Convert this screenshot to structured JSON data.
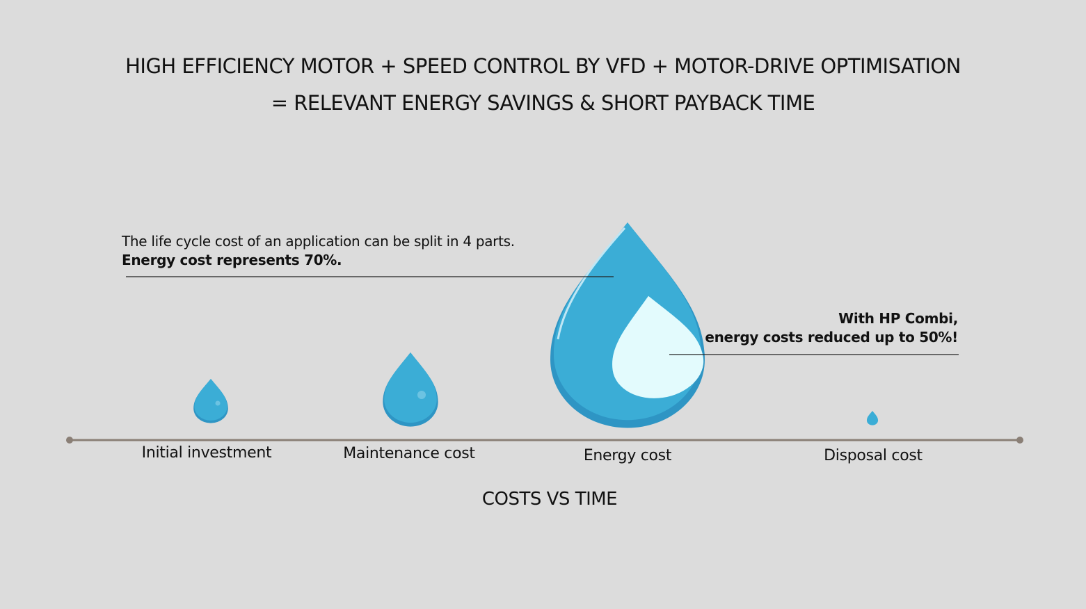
{
  "title": {
    "line1": "HIGH EFFICIENCY MOTOR + SPEED CONTROL BY VFD + MOTOR-DRIVE OPTIMISATION",
    "line2": "= RELEVANT ENERGY SAVINGS & SHORT PAYBACK TIME"
  },
  "annotations": [
    {
      "lines": [
        "The life cycle cost of an application can be split in 4 parts.",
        "Energy cost represents 70%."
      ]
    },
    {
      "lines": [
        "With HP Combi,",
        "energy costs reduced up to 50%!"
      ]
    }
  ],
  "timeline": {
    "stages": [
      "Initial investment",
      "Maintenance cost",
      "Energy cost",
      "Disposal cost"
    ],
    "label": "COSTS VS TIME"
  }
}
